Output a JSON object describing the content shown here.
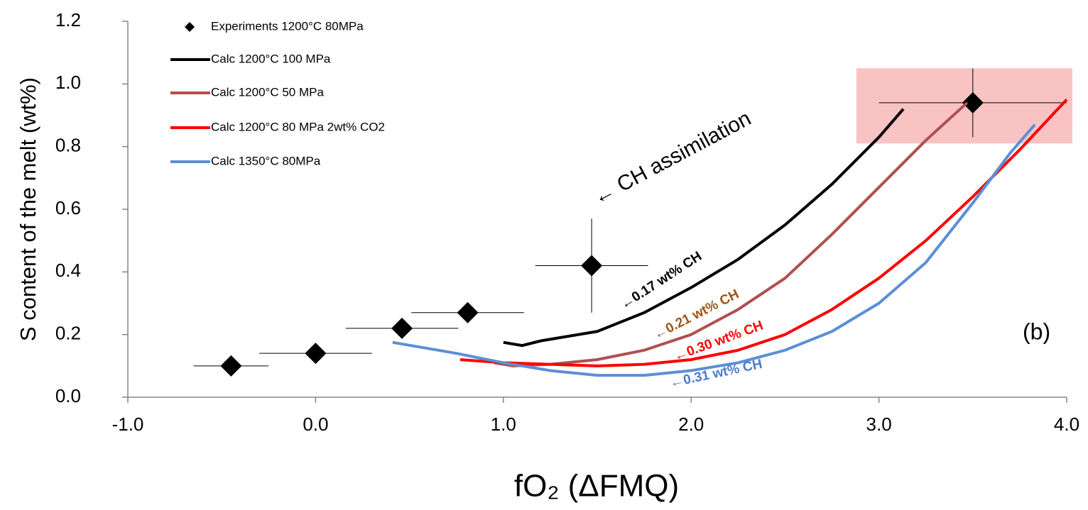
{
  "chart_data": {
    "type": "line",
    "x_label": "fO₂ (ΔFMQ)",
    "y_label": "S content of the melt (wt%)",
    "xlim": [
      -1.0,
      4.0
    ],
    "ylim": [
      0.0,
      1.2
    ],
    "xticks": [
      {
        "value": -1,
        "label": "-1.0"
      },
      {
        "value": 0,
        "label": "0.0"
      },
      {
        "value": 1,
        "label": "1.0"
      },
      {
        "value": 2,
        "label": "2.0"
      },
      {
        "value": 3,
        "label": "3.0"
      },
      {
        "value": 4,
        "label": "4.0"
      }
    ],
    "yticks": [
      {
        "value": 0,
        "label": "0.0"
      },
      {
        "value": 0.2,
        "label": "0.2"
      },
      {
        "value": 0.4,
        "label": "0.4"
      },
      {
        "value": 0.6,
        "label": "0.6"
      },
      {
        "value": 0.8,
        "label": "0.8"
      },
      {
        "value": 1.0,
        "label": "1.0"
      },
      {
        "value": 1.2,
        "label": "1.2"
      }
    ],
    "legend": "upper left",
    "highlight": {
      "xlim": [
        2.88,
        4.03
      ],
      "ylim": [
        0.81,
        1.05
      ],
      "color": "#f9c3c3"
    },
    "series": [
      {
        "name": "Experiments 1200°C 80MPa",
        "type": "scatter",
        "color": "#000000",
        "x": [
          -0.45,
          0.0,
          0.46,
          0.81,
          1.47,
          3.5
        ],
        "values": [
          0.1,
          0.14,
          0.22,
          0.27,
          0.42,
          0.94
        ],
        "xerr": [
          0.2,
          0.3,
          0.3,
          0.3,
          0.3,
          0.5
        ],
        "yerr": [
          null,
          null,
          null,
          null,
          0.15,
          0.11
        ]
      },
      {
        "name": "Calc 1200°C 100 MPa",
        "type": "line",
        "color": "#000000",
        "x": [
          1.0,
          1.1,
          1.2,
          1.5,
          1.75,
          2.0,
          2.25,
          2.5,
          2.75,
          3.0,
          3.13
        ],
        "values": [
          0.175,
          0.165,
          0.18,
          0.21,
          0.27,
          0.35,
          0.44,
          0.55,
          0.68,
          0.83,
          0.92
        ]
      },
      {
        "name": "Calc 1200°C 50 MPa",
        "type": "line",
        "color": "#b05050",
        "x": [
          0.95,
          1.05,
          1.25,
          1.5,
          1.75,
          2.0,
          2.25,
          2.5,
          2.75,
          3.0,
          3.25,
          3.47
        ],
        "values": [
          0.11,
          0.1,
          0.105,
          0.12,
          0.15,
          0.2,
          0.28,
          0.38,
          0.52,
          0.67,
          0.82,
          0.94
        ]
      },
      {
        "name": "Calc 1200°C 80 MPa 2wt% CO2",
        "type": "line",
        "color": "#ff0000",
        "x": [
          0.77,
          1.0,
          1.25,
          1.5,
          1.75,
          2.0,
          2.25,
          2.5,
          2.75,
          3.0,
          3.25,
          3.5,
          3.75,
          4.0
        ],
        "values": [
          0.12,
          0.11,
          0.105,
          0.1,
          0.105,
          0.12,
          0.15,
          0.2,
          0.28,
          0.38,
          0.5,
          0.64,
          0.79,
          0.95
        ]
      },
      {
        "name": "Calc 1350°C 80MPa",
        "type": "line",
        "color": "#5b8fd6",
        "x": [
          0.41,
          0.75,
          1.0,
          1.25,
          1.5,
          1.75,
          2.0,
          2.25,
          2.5,
          2.75,
          3.0,
          3.25,
          3.5,
          3.7,
          3.83
        ],
        "values": [
          0.175,
          0.14,
          0.11,
          0.085,
          0.07,
          0.07,
          0.085,
          0.11,
          0.15,
          0.21,
          0.3,
          0.43,
          0.62,
          0.78,
          0.87
        ]
      }
    ],
    "annotations": [
      {
        "text": "← CH assimilation",
        "color": "#000000"
      },
      {
        "text": "←0.17 wt% CH",
        "color": "#000000"
      },
      {
        "text": "←0.21 wt% CH",
        "color": "#9c5518"
      },
      {
        "text": "←0.30 wt% CH",
        "color": "#ff0000"
      },
      {
        "text": "←0.31 wt% CH",
        "color": "#4a7bd0"
      },
      {
        "text": "(b)",
        "color": "#000000"
      }
    ]
  }
}
